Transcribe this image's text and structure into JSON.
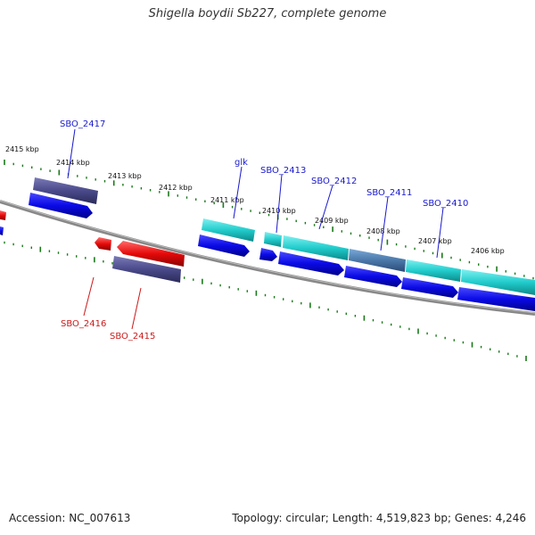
{
  "title": "Shigella boydii Sb227, complete genome",
  "accession": "Accession: NC_007613",
  "summary": "Topology: circular; Length: 4,519,823 bp; Genes: 4,246",
  "kbp_labels": [
    "2415 kbp",
    "2414 kbp",
    "2413 kbp",
    "2412 kbp",
    "2411 kbp",
    "2410 kbp",
    "2409 kbp",
    "2408 kbp",
    "2407 kbp",
    "2406 kbp"
  ],
  "gene_labels_top": [
    "SBO_2417",
    "glk",
    "SBO_2413",
    "SBO_2412",
    "SBO_2411",
    "SBO_2410"
  ],
  "gene_labels_bottom": [
    "SBO_2416",
    "SBO_2415"
  ],
  "colors": {
    "backbone": "#888888",
    "forward_cds": "#0a0ae6",
    "reverse_cds": "#e60a0a",
    "gene_cyan": "#22cccc",
    "gene_dark": "#4a4a8a",
    "tick": "#1a7a1a",
    "label_blue": "#1a1acc",
    "label_red": "#cc1a1a"
  }
}
